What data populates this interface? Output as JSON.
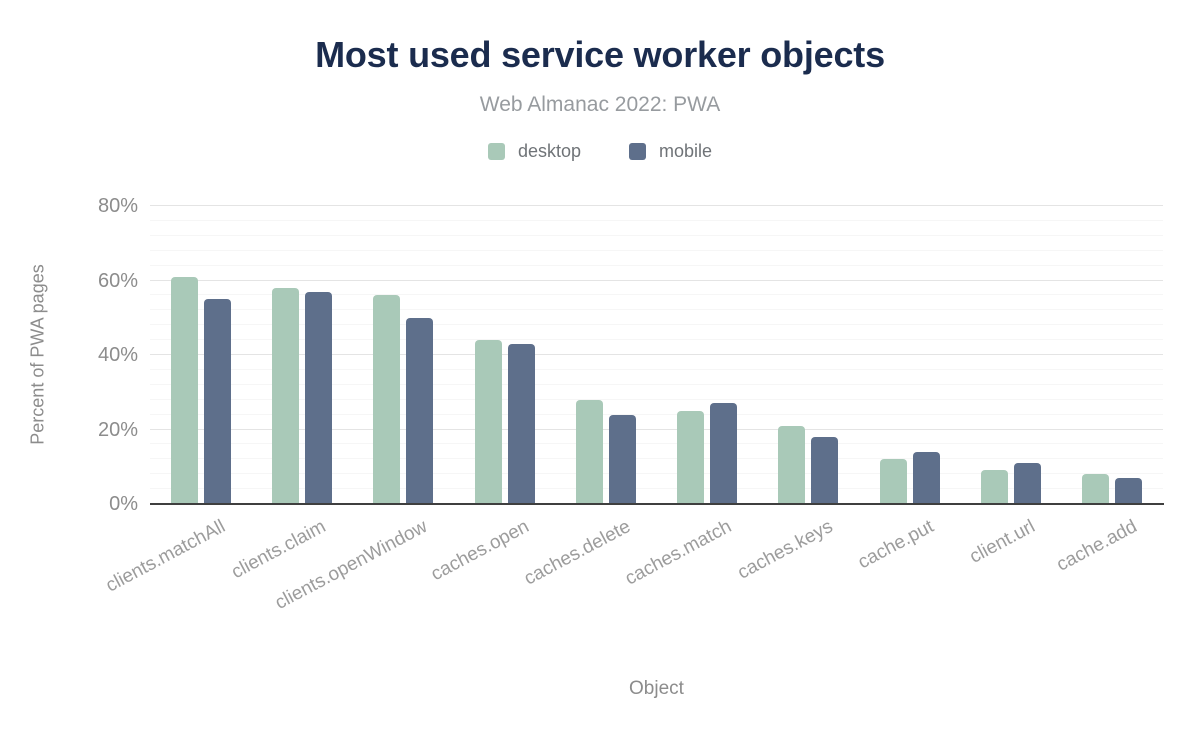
{
  "chart_data": {
    "type": "bar",
    "title": "Most used service worker objects",
    "subtitle": "Web Almanac 2022: PWA",
    "xlabel": "Object",
    "ylabel": "Percent of PWA pages",
    "categories": [
      "clients.matchAll",
      "clients.claim",
      "clients.openWindow",
      "caches.open",
      "caches.delete",
      "caches.match",
      "caches.keys",
      "cache.put",
      "client.url",
      "cache.add"
    ],
    "series": [
      {
        "name": "desktop",
        "color": "#a9c9b8",
        "values": [
          61,
          58,
          56,
          44,
          28,
          25,
          21,
          12,
          9,
          8
        ]
      },
      {
        "name": "mobile",
        "color": "#5e6f8b",
        "values": [
          55,
          57,
          50,
          43,
          24,
          27,
          18,
          14,
          11,
          7
        ]
      }
    ],
    "ylim": [
      0,
      80
    ],
    "yticks": [
      "0%",
      "20%",
      "40%",
      "60%",
      "80%"
    ],
    "grid": {
      "major_interval_pct": 20,
      "minor_interval_pct": 4,
      "major_color": "#e4e4e4",
      "minor_color": "#f6f6f6"
    },
    "legend_position": "top",
    "unit": "%",
    "colors": {
      "title": "#1b2c4e",
      "subtitle": "#979b9f",
      "axis_text": "#8c8c8c",
      "category_text": "#9c9c9c",
      "baseline": "#3f3f3f",
      "background": "#ffffff"
    }
  }
}
